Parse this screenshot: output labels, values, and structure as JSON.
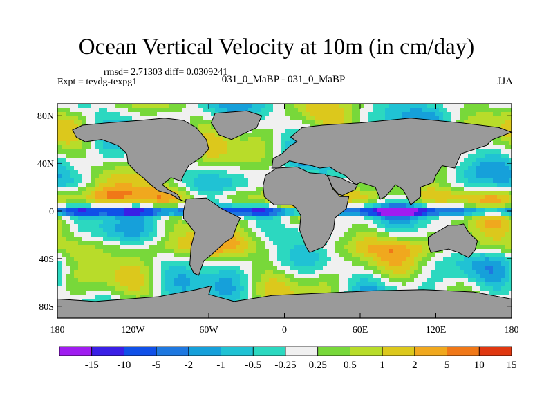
{
  "chart_data": {
    "type": "heatmap",
    "title": "Ocean Vertical Velocity at 10m (in cm/day)",
    "stats_text": "rmsd= 2.71303 diff= 0.0309241",
    "left_subtitle": "Expt = teydg-texpg1",
    "center_subtitle": "031_0_MaBP - 031_0_MaBP",
    "right_subtitle": "JJA",
    "x_ticks": [
      {
        "value": -180,
        "label": "180"
      },
      {
        "value": -120,
        "label": "120W"
      },
      {
        "value": -60,
        "label": "60W"
      },
      {
        "value": 0,
        "label": "0"
      },
      {
        "value": 60,
        "label": "60E"
      },
      {
        "value": 120,
        "label": "120E"
      },
      {
        "value": 180,
        "label": "180"
      }
    ],
    "y_ticks": [
      {
        "value": 80,
        "label": "80N"
      },
      {
        "value": 40,
        "label": "40N"
      },
      {
        "value": 0,
        "label": "0"
      },
      {
        "value": -40,
        "label": "40S"
      },
      {
        "value": -80,
        "label": "80S"
      }
    ],
    "xlim": [
      -180,
      180
    ],
    "ylim": [
      -90,
      90
    ],
    "colorbar": {
      "levels": [
        "-15",
        "-10",
        "-5",
        "-2",
        "-1",
        "-0.5",
        "-0.25",
        "0.25",
        "0.5",
        "1",
        "2",
        "5",
        "10",
        "15"
      ],
      "colors": [
        "#a01cf0",
        "#3a1fe6",
        "#1050e8",
        "#1e78e0",
        "#16a0da",
        "#20c2d4",
        "#2cd8c0",
        "#f0f0f0",
        "#78d83a",
        "#b8dc2a",
        "#dcc81c",
        "#f0a81e",
        "#f07818",
        "#e03810"
      ]
    },
    "land_color": "#9a9a9a"
  }
}
